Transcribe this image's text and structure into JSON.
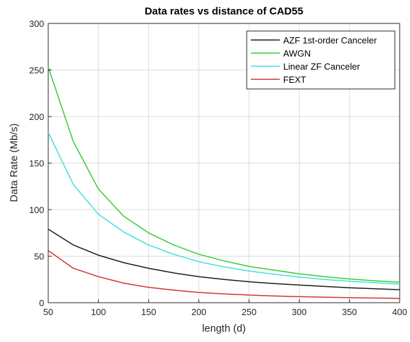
{
  "chart_data": {
    "type": "line",
    "title": "Data rates vs distance of CAD55",
    "xlabel": "length (d)",
    "ylabel": "Data Rate (Mb/s)",
    "xlim": [
      50,
      400
    ],
    "ylim": [
      0,
      300
    ],
    "xticks": [
      50,
      100,
      150,
      200,
      250,
      300,
      350,
      400
    ],
    "yticks": [
      0,
      50,
      100,
      150,
      200,
      250,
      300
    ],
    "grid": true,
    "legend_position": "top-right",
    "x": [
      50,
      75,
      100,
      125,
      150,
      175,
      200,
      225,
      250,
      275,
      300,
      325,
      350,
      375,
      400
    ],
    "series": [
      {
        "name": "AZF 1st-order Canceler",
        "color": "#1a1a1a",
        "values": [
          79,
          62,
          51,
          43,
          37,
          32,
          28,
          25,
          22.5,
          20.5,
          19,
          17.5,
          16,
          15,
          14
        ]
      },
      {
        "name": "AWGN",
        "color": "#33cc33",
        "values": [
          253,
          173,
          122,
          93,
          75,
          62,
          52,
          45,
          39,
          35,
          31,
          28,
          25.5,
          23.5,
          22
        ]
      },
      {
        "name": "Linear ZF Canceler",
        "color": "#40e0e0",
        "values": [
          183,
          127,
          95,
          76,
          62,
          52,
          44,
          38.5,
          34,
          30.5,
          27.5,
          25,
          23,
          21.5,
          20
        ]
      },
      {
        "name": "FEXT",
        "color": "#cc3333",
        "values": [
          56,
          37,
          28,
          21,
          16.5,
          13.5,
          11,
          9.5,
          8.2,
          7.2,
          6.5,
          5.9,
          5.4,
          5,
          4.7
        ]
      }
    ]
  }
}
